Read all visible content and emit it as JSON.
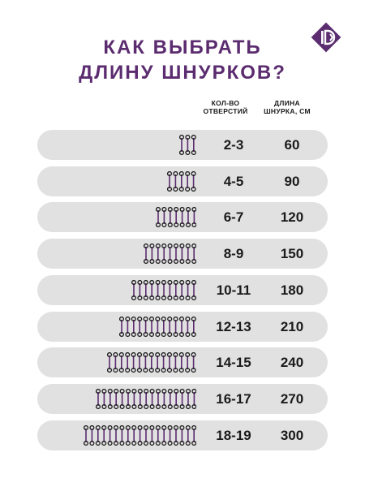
{
  "title_line1": "КАК ВЫБРАТЬ",
  "title_line2": "ДЛИНУ ШНУРКОВ?",
  "header": {
    "holes_line1": "КОЛ-ВО",
    "holes_line2": "ОТВЕРСТИЙ",
    "length_line1": "ДЛИНА",
    "length_line2": "ШНУРКА, СМ"
  },
  "colors": {
    "accent": "#5b2c6f",
    "row_bg": "#e1e1e1",
    "text": "#1a1a1a"
  },
  "rows": [
    {
      "holes": "2-3",
      "length": "60",
      "icon_pairs": 3
    },
    {
      "holes": "4-5",
      "length": "90",
      "icon_pairs": 5
    },
    {
      "holes": "6-7",
      "length": "120",
      "icon_pairs": 7
    },
    {
      "holes": "8-9",
      "length": "150",
      "icon_pairs": 9
    },
    {
      "holes": "10-11",
      "length": "180",
      "icon_pairs": 11
    },
    {
      "holes": "12-13",
      "length": "210",
      "icon_pairs": 13
    },
    {
      "holes": "14-15",
      "length": "240",
      "icon_pairs": 15
    },
    {
      "holes": "16-17",
      "length": "270",
      "icon_pairs": 17
    },
    {
      "holes": "18-19",
      "length": "300",
      "icon_pairs": 19
    }
  ]
}
